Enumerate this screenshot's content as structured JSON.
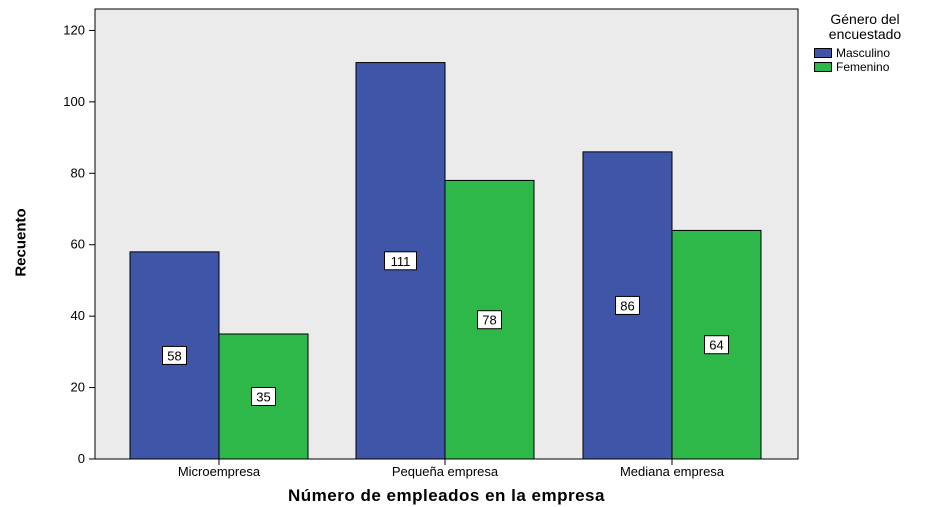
{
  "chart_data": {
    "type": "bar",
    "title": "",
    "xlabel": "Número de empleados en la empresa",
    "ylabel": "Recuento",
    "categories": [
      "Microempresa",
      "Pequeña empresa",
      "Mediana empresa"
    ],
    "series": [
      {
        "name": "Masculino",
        "values": [
          58,
          111,
          86
        ],
        "color": "#3f56a8"
      },
      {
        "name": "Femenino",
        "values": [
          35,
          78,
          64
        ],
        "color": "#2eb84a"
      }
    ],
    "ylim": [
      0,
      126
    ],
    "yticks": [
      0,
      20,
      40,
      60,
      80,
      100,
      120
    ],
    "legend": {
      "title_line1": "Género del",
      "title_line2": "encuestado",
      "placement": "right"
    },
    "plot_background": "#ebebeb",
    "grid": false
  }
}
